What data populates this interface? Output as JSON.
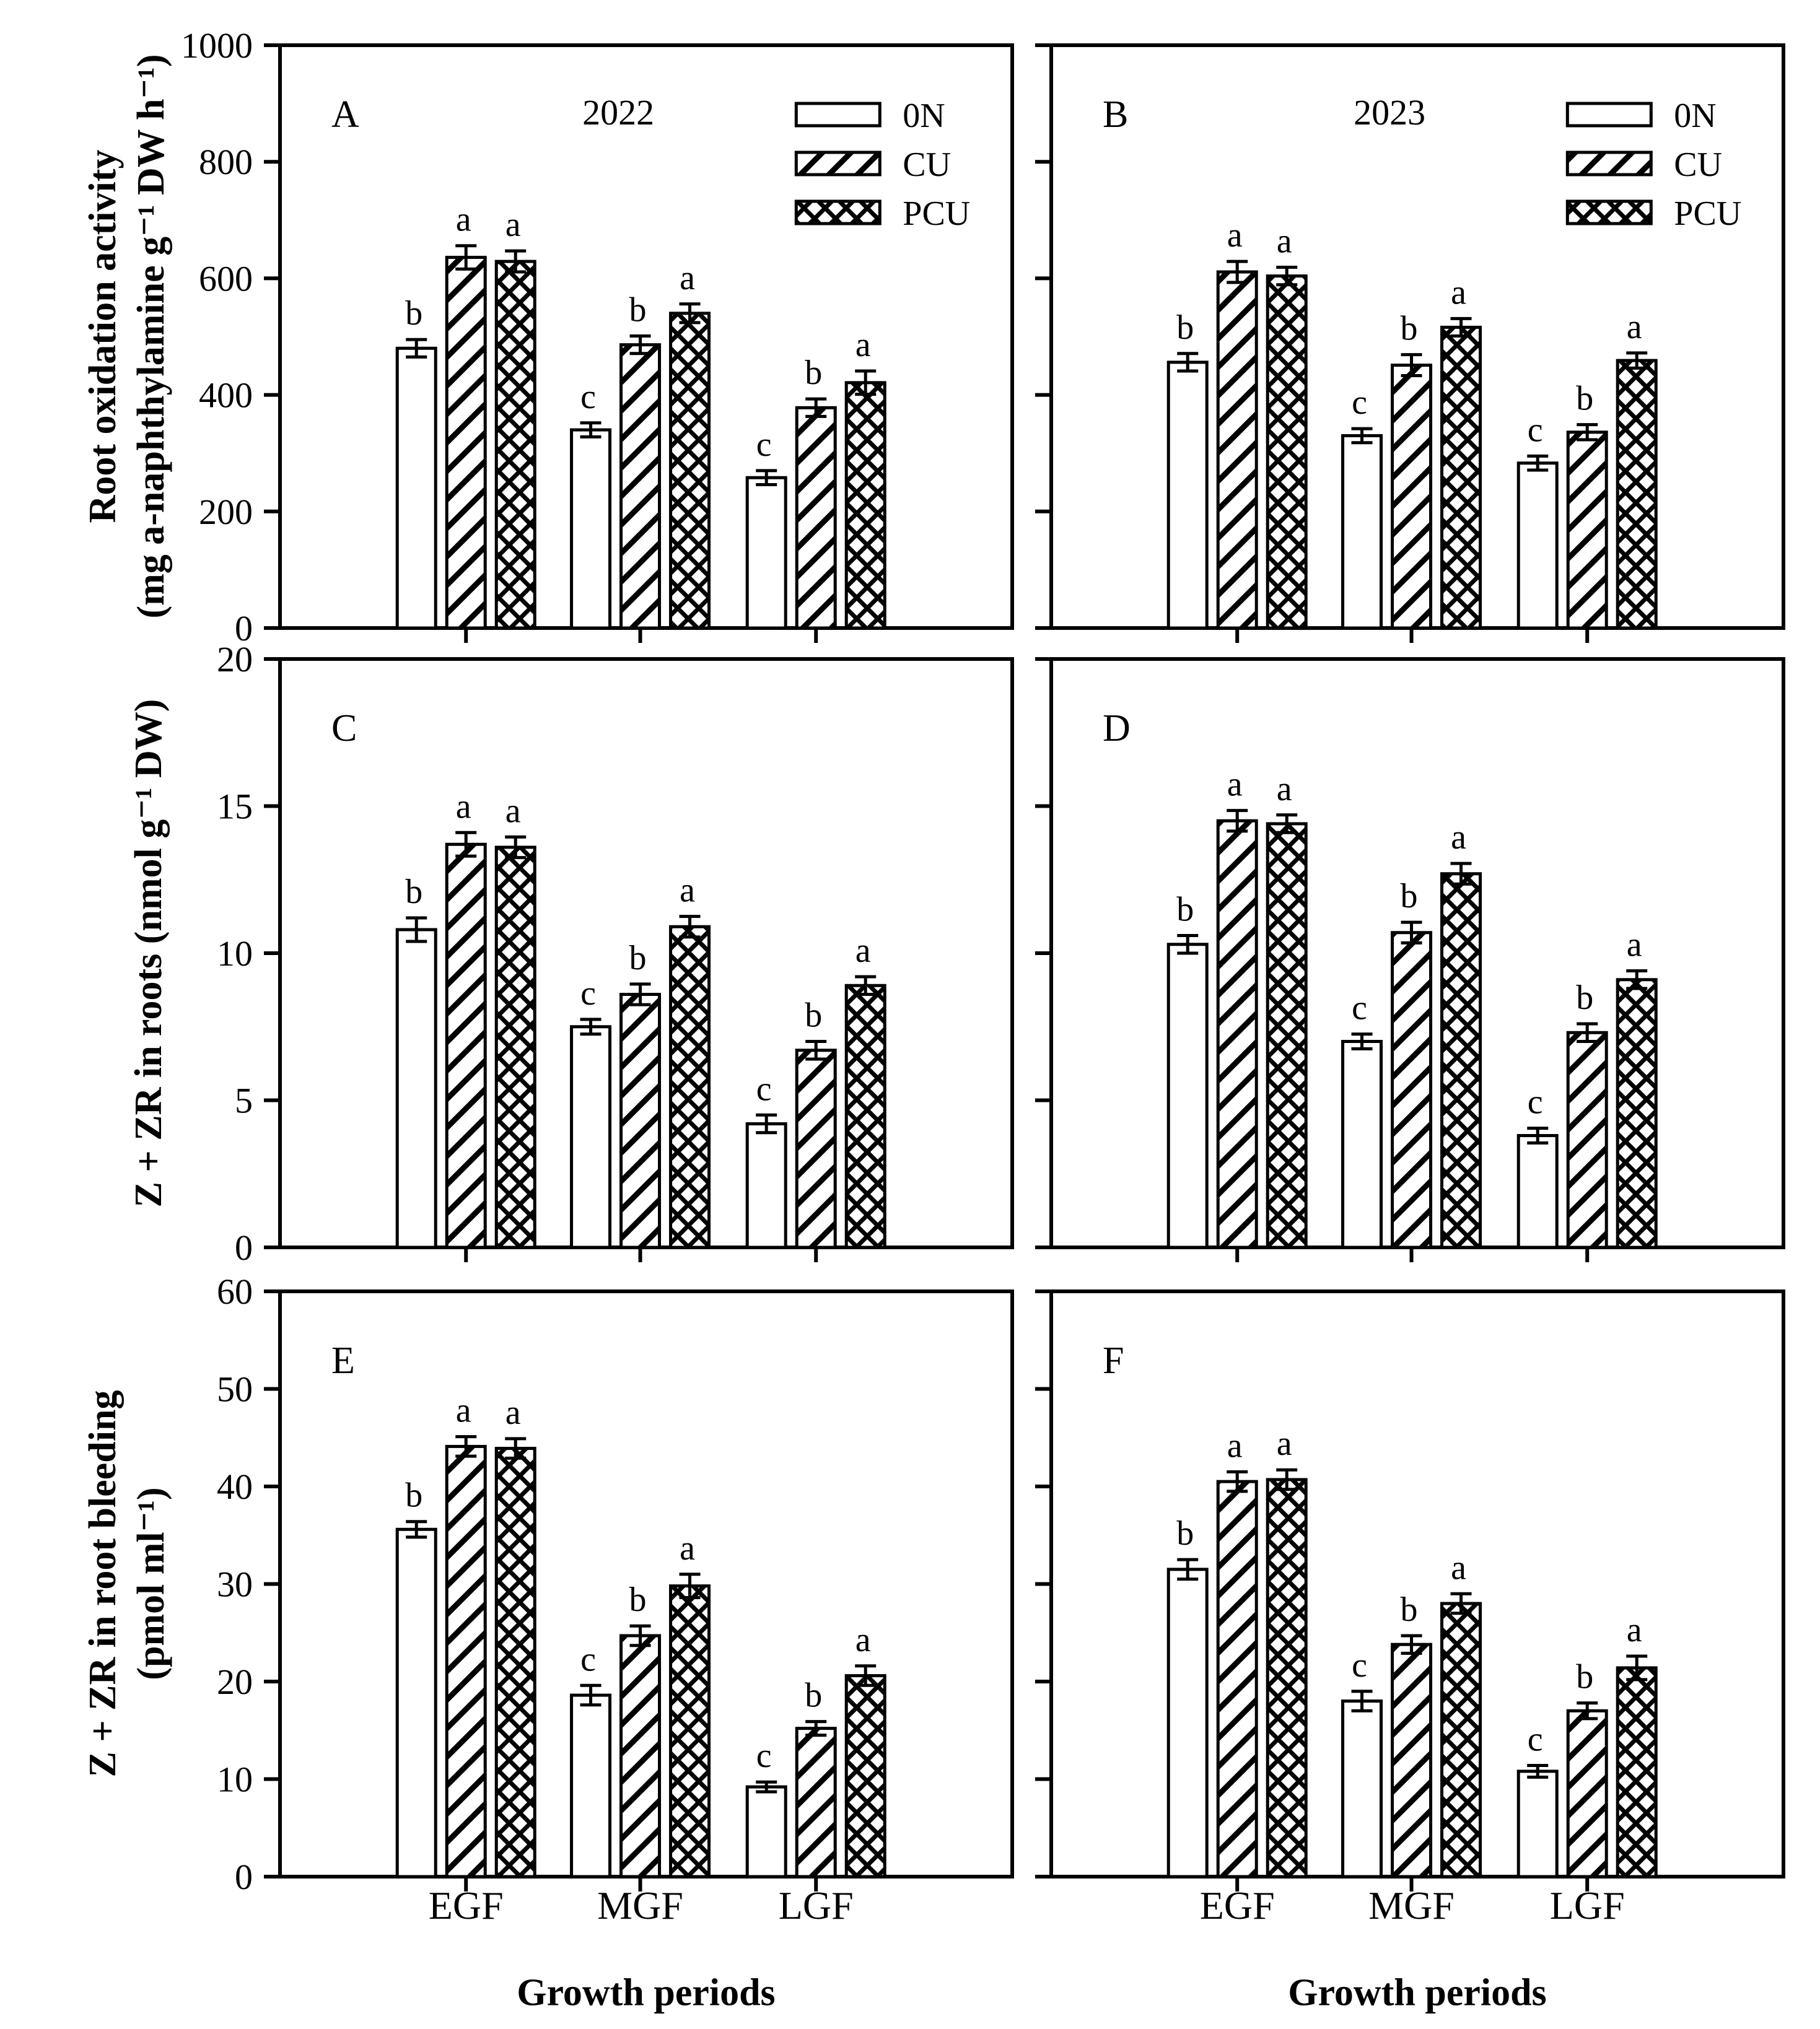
{
  "figure": {
    "background": "#ffffff",
    "ink": "#000000",
    "x_axis_title": "Growth periods",
    "categories": [
      "EGF",
      "MGF",
      "LGF"
    ],
    "row_ylabels": [
      {
        "line1": "Root oxidation activity",
        "line2": "(mg a-naphthylamine g⁻¹ DW h⁻¹)"
      },
      {
        "line1": "Z + ZR in roots (nmol g⁻¹ DW)",
        "line2": ""
      },
      {
        "line1": "Z + ZR in root bleeding",
        "line2": "(pmol ml⁻¹)"
      }
    ],
    "legend": {
      "entries": [
        {
          "label": "0N",
          "pattern": "plain",
          "swatch": "white-rect-icon"
        },
        {
          "label": "CU",
          "pattern": "diagonal",
          "swatch": "diagonal-hatch-icon"
        },
        {
          "label": "PCU",
          "pattern": "crosshatch",
          "swatch": "crosshatch-icon"
        }
      ]
    }
  },
  "chart_data": [
    {
      "type": "bar",
      "panel": "A",
      "year": "2022",
      "ylabel": "Root oxidation activity (mg a-naphthylamine g⁻¹ DW h⁻¹)",
      "ylim": [
        0,
        1000
      ],
      "yticks": [
        0,
        200,
        400,
        600,
        800,
        1000
      ],
      "categories": [
        "EGF",
        "MGF",
        "LGF"
      ],
      "show_legend": true,
      "show_ytick_labels": true,
      "show_xtick_labels": false,
      "series": [
        {
          "name": "0N",
          "pattern": "plain",
          "values": [
            480,
            340,
            258
          ],
          "errors": [
            15,
            12,
            12
          ],
          "letters": [
            "b",
            "c",
            "c"
          ]
        },
        {
          "name": "CU",
          "pattern": "diagonal",
          "values": [
            636,
            486,
            378
          ],
          "errors": [
            20,
            15,
            15
          ],
          "letters": [
            "a",
            "b",
            "b"
          ]
        },
        {
          "name": "PCU",
          "pattern": "crosshatch",
          "values": [
            629,
            540,
            421
          ],
          "errors": [
            18,
            16,
            20
          ],
          "letters": [
            "a",
            "a",
            "a"
          ]
        }
      ]
    },
    {
      "type": "bar",
      "panel": "B",
      "year": "2023",
      "ylabel": "Root oxidation activity (mg a-naphthylamine g⁻¹ DW h⁻¹)",
      "ylim": [
        0,
        1000
      ],
      "yticks": [
        0,
        200,
        400,
        600,
        800,
        1000
      ],
      "categories": [
        "EGF",
        "MGF",
        "LGF"
      ],
      "show_legend": true,
      "show_ytick_labels": false,
      "show_xtick_labels": false,
      "series": [
        {
          "name": "0N",
          "pattern": "plain",
          "values": [
            456,
            330,
            283
          ],
          "errors": [
            15,
            12,
            12
          ],
          "letters": [
            "b",
            "c",
            "c"
          ]
        },
        {
          "name": "CU",
          "pattern": "diagonal",
          "values": [
            611,
            451,
            336
          ],
          "errors": [
            18,
            18,
            13
          ],
          "letters": [
            "a",
            "b",
            "b"
          ]
        },
        {
          "name": "PCU",
          "pattern": "crosshatch",
          "values": [
            604,
            516,
            459
          ],
          "errors": [
            15,
            15,
            13
          ],
          "letters": [
            "a",
            "a",
            "a"
          ]
        }
      ]
    },
    {
      "type": "bar",
      "panel": "C",
      "year": "",
      "ylabel": "Z + ZR in roots (nmol g⁻¹ DW)",
      "ylim": [
        0,
        20
      ],
      "yticks": [
        0,
        5,
        10,
        15,
        20
      ],
      "categories": [
        "EGF",
        "MGF",
        "LGF"
      ],
      "show_legend": false,
      "show_ytick_labels": true,
      "show_xtick_labels": false,
      "series": [
        {
          "name": "0N",
          "pattern": "plain",
          "values": [
            10.8,
            7.5,
            4.2
          ],
          "errors": [
            0.4,
            0.25,
            0.3
          ],
          "letters": [
            "b",
            "c",
            "c"
          ]
        },
        {
          "name": "CU",
          "pattern": "diagonal",
          "values": [
            13.7,
            8.6,
            6.7
          ],
          "errors": [
            0.4,
            0.35,
            0.3
          ],
          "letters": [
            "a",
            "b",
            "b"
          ]
        },
        {
          "name": "PCU",
          "pattern": "crosshatch",
          "values": [
            13.6,
            10.9,
            8.9
          ],
          "errors": [
            0.35,
            0.35,
            0.3
          ],
          "letters": [
            "a",
            "a",
            "a"
          ]
        }
      ]
    },
    {
      "type": "bar",
      "panel": "D",
      "year": "",
      "ylabel": "Z + ZR in roots (nmol g⁻¹ DW)",
      "ylim": [
        0,
        20
      ],
      "yticks": [
        0,
        5,
        10,
        15,
        20
      ],
      "categories": [
        "EGF",
        "MGF",
        "LGF"
      ],
      "show_legend": false,
      "show_ytick_labels": false,
      "show_xtick_labels": false,
      "series": [
        {
          "name": "0N",
          "pattern": "plain",
          "values": [
            10.3,
            7.0,
            3.8
          ],
          "errors": [
            0.3,
            0.25,
            0.25
          ],
          "letters": [
            "b",
            "c",
            "c"
          ]
        },
        {
          "name": "CU",
          "pattern": "diagonal",
          "values": [
            14.5,
            10.7,
            7.3
          ],
          "errors": [
            0.35,
            0.35,
            0.3
          ],
          "letters": [
            "a",
            "b",
            "b"
          ]
        },
        {
          "name": "PCU",
          "pattern": "crosshatch",
          "values": [
            14.4,
            12.7,
            9.1
          ],
          "errors": [
            0.3,
            0.35,
            0.3
          ],
          "letters": [
            "a",
            "a",
            "a"
          ]
        }
      ]
    },
    {
      "type": "bar",
      "panel": "E",
      "year": "",
      "ylabel": "Z + ZR in root bleeding (pmol ml⁻¹)",
      "ylim": [
        0,
        60
      ],
      "yticks": [
        0,
        10,
        20,
        30,
        40,
        50,
        60
      ],
      "categories": [
        "EGF",
        "MGF",
        "LGF"
      ],
      "show_legend": false,
      "show_ytick_labels": true,
      "show_xtick_labels": true,
      "series": [
        {
          "name": "0N",
          "pattern": "plain",
          "values": [
            35.6,
            18.6,
            9.2
          ],
          "errors": [
            0.8,
            1.0,
            0.5
          ],
          "letters": [
            "b",
            "c",
            "c"
          ]
        },
        {
          "name": "CU",
          "pattern": "diagonal",
          "values": [
            44.1,
            24.7,
            15.2
          ],
          "errors": [
            1.0,
            1.0,
            0.7
          ],
          "letters": [
            "a",
            "b",
            "b"
          ]
        },
        {
          "name": "PCU",
          "pattern": "crosshatch",
          "values": [
            43.9,
            29.8,
            20.6
          ],
          "errors": [
            1.0,
            1.2,
            1.0
          ],
          "letters": [
            "a",
            "a",
            "a"
          ]
        }
      ]
    },
    {
      "type": "bar",
      "panel": "F",
      "year": "",
      "ylabel": "Z + ZR in root bleeding (pmol ml⁻¹)",
      "ylim": [
        0,
        60
      ],
      "yticks": [
        0,
        10,
        20,
        30,
        40,
        50,
        60
      ],
      "categories": [
        "EGF",
        "MGF",
        "LGF"
      ],
      "show_legend": false,
      "show_ytick_labels": false,
      "show_xtick_labels": true,
      "series": [
        {
          "name": "0N",
          "pattern": "plain",
          "values": [
            31.5,
            18.0,
            10.8
          ],
          "errors": [
            1.0,
            1.0,
            0.6
          ],
          "letters": [
            "b",
            "c",
            "c"
          ]
        },
        {
          "name": "CU",
          "pattern": "diagonal",
          "values": [
            40.5,
            23.8,
            17.0
          ],
          "errors": [
            1.0,
            0.9,
            0.8
          ],
          "letters": [
            "a",
            "b",
            "b"
          ]
        },
        {
          "name": "PCU",
          "pattern": "crosshatch",
          "values": [
            40.7,
            28.0,
            21.4
          ],
          "errors": [
            1.0,
            1.0,
            1.2
          ],
          "letters": [
            "a",
            "a",
            "a"
          ]
        }
      ]
    }
  ]
}
